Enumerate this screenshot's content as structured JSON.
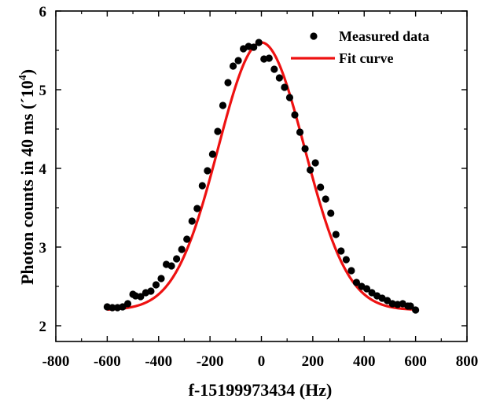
{
  "chart_data": {
    "type": "scatter",
    "xlabel": "f-15199973434 (Hz)",
    "ylabel_main": "Photon counts in 40 ms (´10",
    "ylabel_exp": "4",
    "ylabel_close": ")",
    "xlim": [
      -800,
      800
    ],
    "ylim": [
      1.8,
      6.0
    ],
    "xticks": [
      -800,
      -600,
      -400,
      -200,
      0,
      200,
      400,
      600,
      800
    ],
    "yticks": [
      2,
      3,
      4,
      5,
      6
    ],
    "grid": false,
    "legend_position": "top-right",
    "colors": {
      "measured": "#000000",
      "fit": "#ee1111",
      "axis": "#000000"
    },
    "series": [
      {
        "name": "Measured data",
        "kind": "points",
        "x": [
          -600,
          -580,
          -560,
          -540,
          -520,
          -500,
          -490,
          -470,
          -450,
          -430,
          -410,
          -390,
          -370,
          -350,
          -330,
          -310,
          -290,
          -270,
          -250,
          -230,
          -210,
          -190,
          -170,
          -150,
          -130,
          -110,
          -90,
          -70,
          -50,
          -30,
          -10,
          10,
          30,
          50,
          70,
          90,
          110,
          130,
          150,
          170,
          190,
          210,
          230,
          250,
          270,
          290,
          310,
          330,
          350,
          370,
          390,
          410,
          430,
          450,
          470,
          490,
          510,
          530,
          550,
          570,
          580,
          600
        ],
        "y": [
          2.24,
          2.23,
          2.23,
          2.24,
          2.28,
          2.4,
          2.38,
          2.37,
          2.42,
          2.44,
          2.52,
          2.6,
          2.78,
          2.76,
          2.85,
          2.97,
          3.1,
          3.33,
          3.49,
          3.78,
          3.97,
          4.18,
          4.47,
          4.8,
          5.09,
          5.3,
          5.37,
          5.52,
          5.55,
          5.54,
          5.6,
          5.39,
          5.4,
          5.26,
          5.15,
          5.03,
          4.9,
          4.68,
          4.46,
          4.25,
          3.98,
          4.07,
          3.76,
          3.61,
          3.43,
          3.16,
          2.95,
          2.84,
          2.7,
          2.55,
          2.5,
          2.47,
          2.42,
          2.38,
          2.35,
          2.32,
          2.28,
          2.27,
          2.28,
          2.25,
          2.25,
          2.2
        ]
      },
      {
        "name": "Fit curve",
        "kind": "line",
        "model": {
          "offset": 2.2,
          "amplitude": 3.4,
          "center": 0,
          "sigma": 168
        },
        "x_range": [
          -600,
          600
        ]
      }
    ]
  }
}
